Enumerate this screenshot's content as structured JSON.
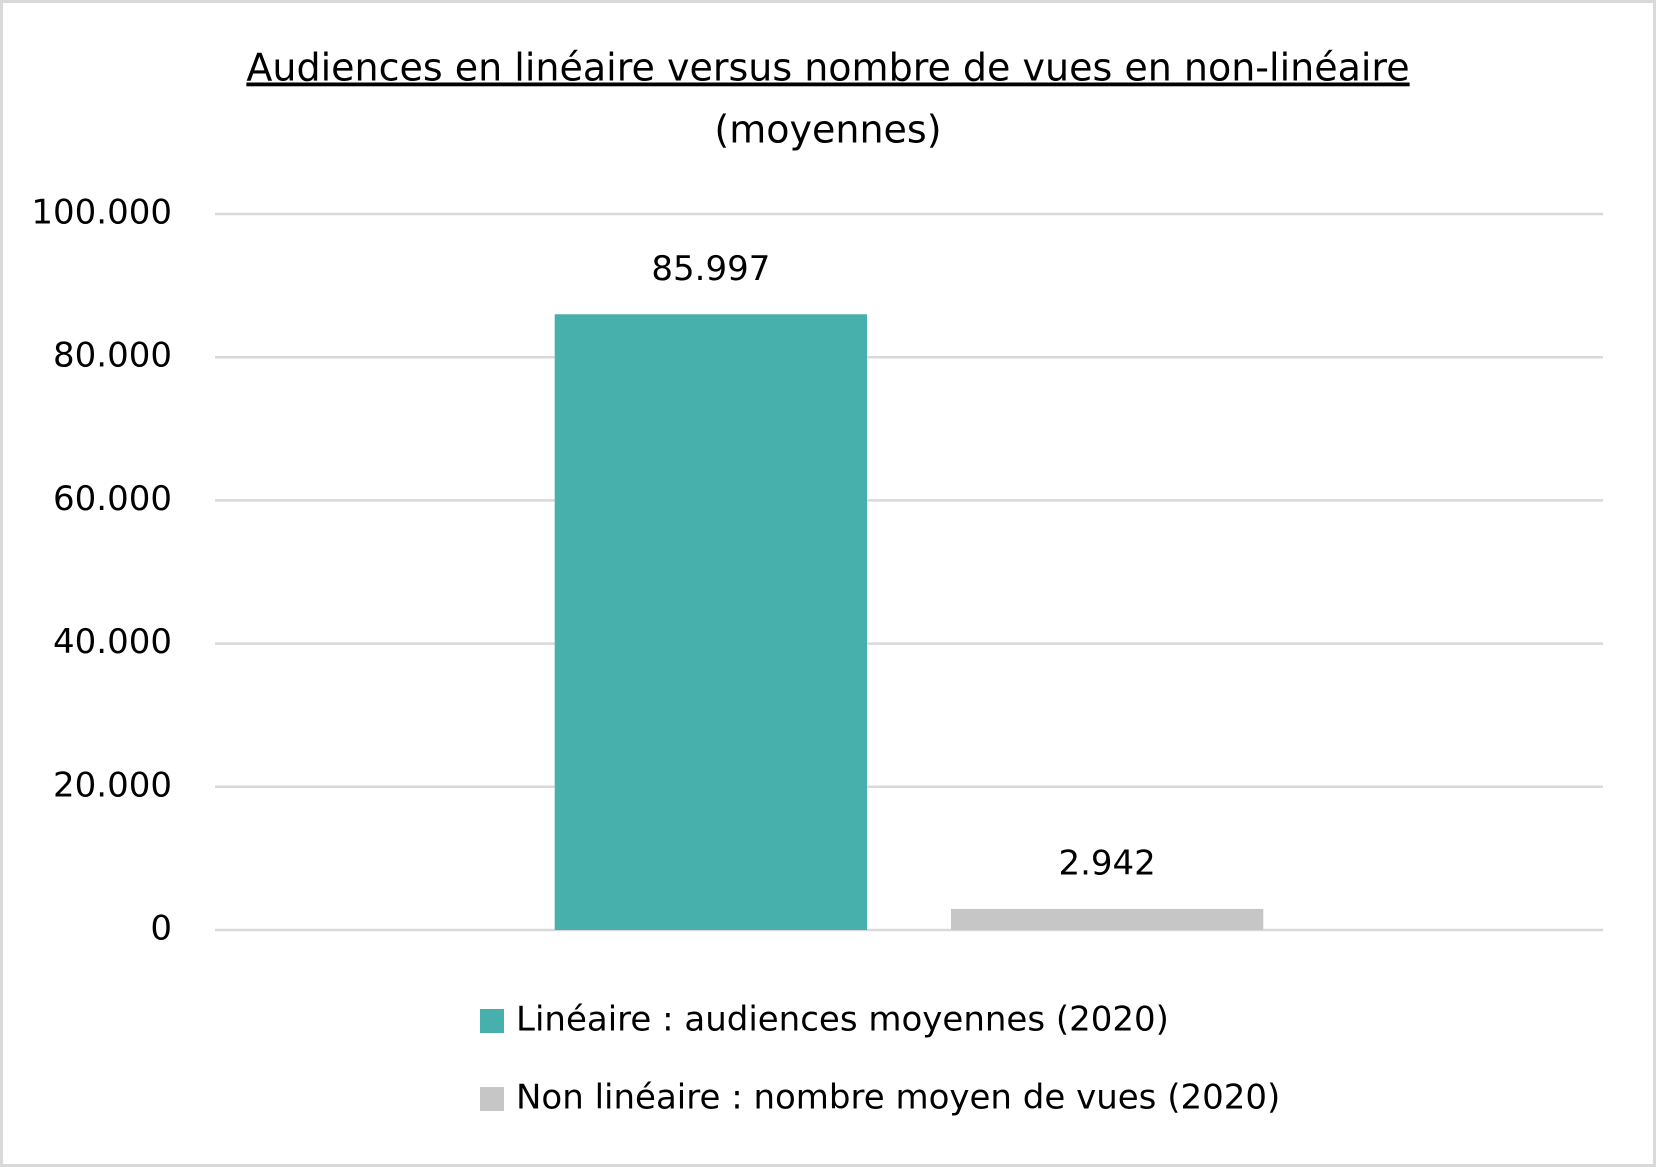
{
  "chart_data": {
    "type": "bar",
    "title": "Audiences en linéaire versus nombre de vues en non-linéaire",
    "subtitle": "(moyennes)",
    "categories": [
      null
    ],
    "series": [
      {
        "name": "Linéaire : audiences moyennes (2020)",
        "color": "#48b0ac",
        "values": [
          85997
        ],
        "value_labels": [
          "85.997"
        ]
      },
      {
        "name": "Non linéaire : nombre moyen de vues (2020)",
        "color": "#c6c6c6",
        "values": [
          2942
        ],
        "value_labels": [
          "2.942"
        ]
      }
    ],
    "ylim": [
      0,
      100000
    ],
    "yticks": [
      0,
      {
        "value": 20000,
        "label": "20.000"
      },
      {
        "value": 40000,
        "label": "40.000"
      },
      {
        "value": 60000,
        "label": "60.000"
      },
      {
        "value": 80000,
        "label": "80.000"
      },
      {
        "value": 100000,
        "label": "100.000"
      }
    ],
    "grid": true,
    "legend": "bottom"
  }
}
